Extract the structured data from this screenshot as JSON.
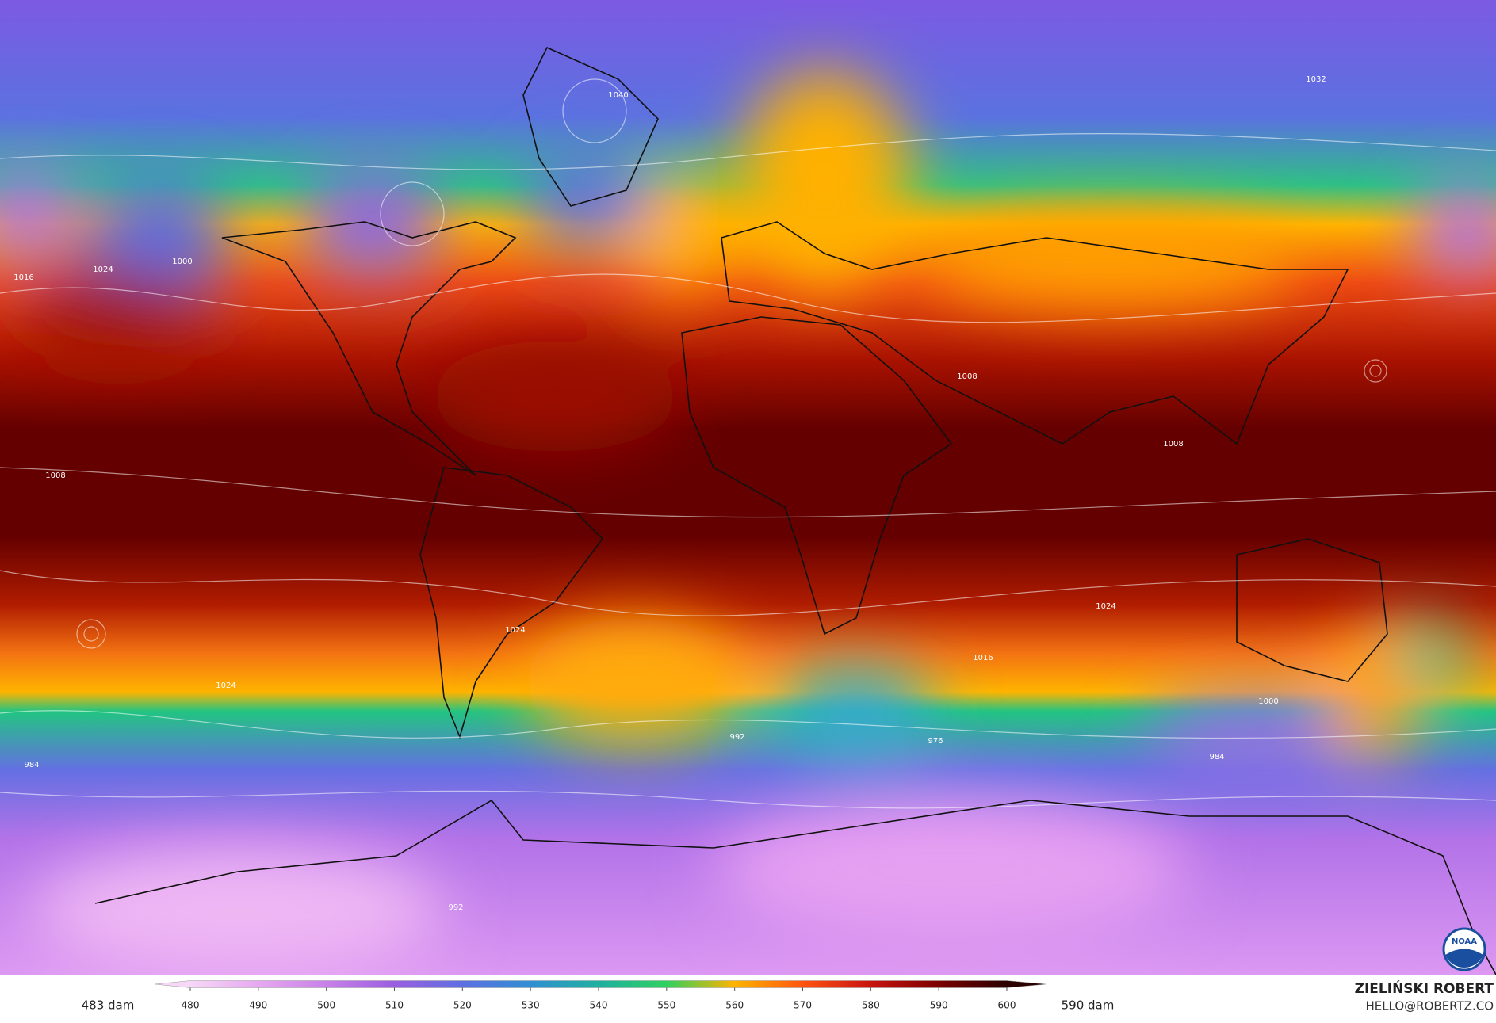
{
  "map": {
    "contour_labels": [
      "1008",
      "1016",
      "1024",
      "1040",
      "1032",
      "1000",
      "992",
      "984",
      "976",
      "1008",
      "1024",
      "1016",
      "1000",
      "1024",
      "1008",
      "992",
      "984",
      "1024"
    ],
    "logo_text": "NOAA"
  },
  "colorbar": {
    "ticks": [
      480,
      490,
      500,
      510,
      520,
      530,
      540,
      550,
      560,
      570,
      580,
      590,
      600
    ],
    "colors": [
      "#f6d8f6",
      "#e6a8f0",
      "#c880e8",
      "#9a5fe0",
      "#5d6fe2",
      "#2f8fd2",
      "#1fb0a0",
      "#2fd060",
      "#ffb400",
      "#ff5410",
      "#c81410",
      "#7c0000",
      "#2a0000"
    ],
    "min_label": "483 dam",
    "max_label": "590 dam"
  },
  "credit": {
    "name": "ZIELIŃSKI ROBERT",
    "email": "HELLO@ROBERTZ.CO"
  }
}
